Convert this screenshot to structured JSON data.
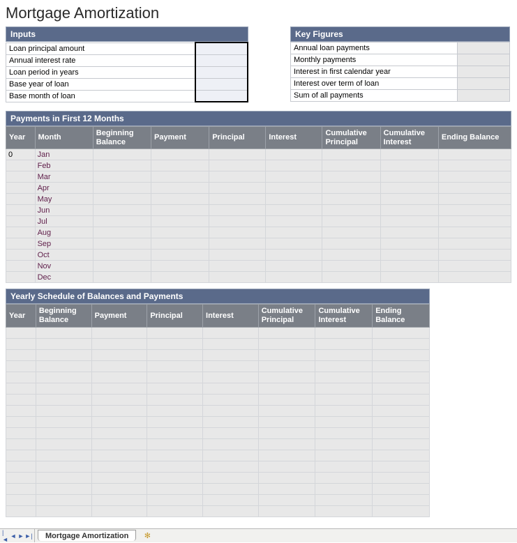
{
  "title": "Mortgage Amortization",
  "colors": {
    "header_bg": "#5a6a8a",
    "subheader_bg": "#7a7f87",
    "cell_bg": "#e8e8e8",
    "input_bg": "#eef0f6",
    "grid_border": "#d4d6da"
  },
  "inputs": {
    "header": "Inputs",
    "rows": [
      {
        "label": "Loan principal amount",
        "value": ""
      },
      {
        "label": "Annual interest rate",
        "value": ""
      },
      {
        "label": "Loan period in years",
        "value": ""
      },
      {
        "label": "Base year of loan",
        "value": ""
      },
      {
        "label": "Base month of loan",
        "value": ""
      }
    ]
  },
  "key_figures": {
    "header": "Key Figures",
    "rows": [
      {
        "label": "Annual loan payments",
        "value": ""
      },
      {
        "label": "Monthly payments",
        "value": ""
      },
      {
        "label": "Interest in first calendar year",
        "value": ""
      },
      {
        "label": "Interest over term of loan",
        "value": ""
      },
      {
        "label": "Sum of all payments",
        "value": ""
      }
    ]
  },
  "payments": {
    "header": "Payments in First 12 Months",
    "columns": [
      "Year",
      "Month",
      "Beginning Balance",
      "Payment",
      "Principal",
      "Interest",
      "Cumulative Principal",
      "Cumulative Interest",
      "Ending Balance"
    ],
    "rows": [
      {
        "year": "0",
        "month": "Jan",
        "beg": "",
        "pay": "",
        "prin": "",
        "int": "",
        "cprin": "",
        "cint": "",
        "end": ""
      },
      {
        "year": "",
        "month": "Feb",
        "beg": "",
        "pay": "",
        "prin": "",
        "int": "",
        "cprin": "",
        "cint": "",
        "end": ""
      },
      {
        "year": "",
        "month": "Mar",
        "beg": "",
        "pay": "",
        "prin": "",
        "int": "",
        "cprin": "",
        "cint": "",
        "end": ""
      },
      {
        "year": "",
        "month": "Apr",
        "beg": "",
        "pay": "",
        "prin": "",
        "int": "",
        "cprin": "",
        "cint": "",
        "end": ""
      },
      {
        "year": "",
        "month": "May",
        "beg": "",
        "pay": "",
        "prin": "",
        "int": "",
        "cprin": "",
        "cint": "",
        "end": ""
      },
      {
        "year": "",
        "month": "Jun",
        "beg": "",
        "pay": "",
        "prin": "",
        "int": "",
        "cprin": "",
        "cint": "",
        "end": ""
      },
      {
        "year": "",
        "month": "Jul",
        "beg": "",
        "pay": "",
        "prin": "",
        "int": "",
        "cprin": "",
        "cint": "",
        "end": ""
      },
      {
        "year": "",
        "month": "Aug",
        "beg": "",
        "pay": "",
        "prin": "",
        "int": "",
        "cprin": "",
        "cint": "",
        "end": ""
      },
      {
        "year": "",
        "month": "Sep",
        "beg": "",
        "pay": "",
        "prin": "",
        "int": "",
        "cprin": "",
        "cint": "",
        "end": ""
      },
      {
        "year": "",
        "month": "Oct",
        "beg": "",
        "pay": "",
        "prin": "",
        "int": "",
        "cprin": "",
        "cint": "",
        "end": ""
      },
      {
        "year": "",
        "month": "Nov",
        "beg": "",
        "pay": "",
        "prin": "",
        "int": "",
        "cprin": "",
        "cint": "",
        "end": ""
      },
      {
        "year": "",
        "month": "Dec",
        "beg": "",
        "pay": "",
        "prin": "",
        "int": "",
        "cprin": "",
        "cint": "",
        "end": ""
      }
    ]
  },
  "yearly": {
    "header": "Yearly Schedule of Balances and Payments",
    "columns": [
      "Year",
      "Beginning Balance",
      "Payment",
      "Principal",
      "Interest",
      "Cumulative Principal",
      "Cumulative Interest",
      "Ending Balance"
    ],
    "row_count": 17
  },
  "sheet_tab": "Mortgage Amortization"
}
